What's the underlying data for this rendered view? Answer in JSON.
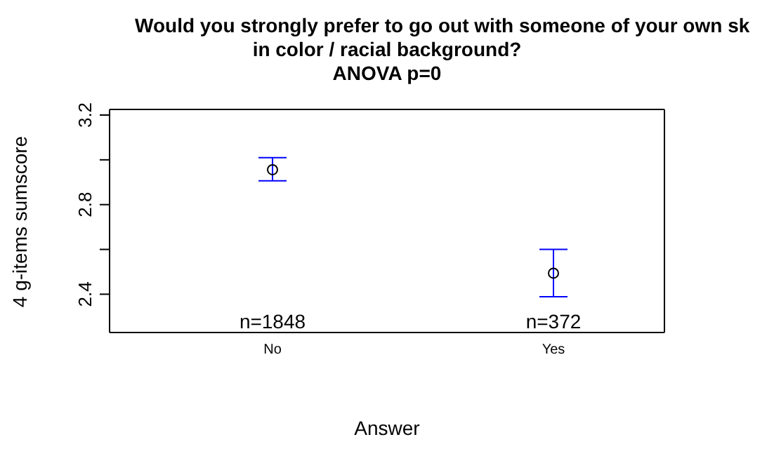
{
  "chart_data": {
    "type": "scatter",
    "title": "Would you strongly prefer to go out with someone of your own sk\nin color / racial background?\nANOVA p=0",
    "xlabel": "Answer",
    "ylabel": "4 g-items sumscore",
    "categories": [
      "No",
      "Yes"
    ],
    "series": [
      {
        "color": "#000000",
        "values": [
          2.956,
          2.494
        ],
        "errors": [
          [
            2.906,
            3.01
          ],
          [
            2.389,
            2.6
          ]
        ]
      }
    ],
    "marker": "circle",
    "ylim": [
      2.229,
      3.225
    ],
    "yticks": [
      2.4,
      {
        "value": 2.6,
        "label": null
      },
      2.8,
      {
        "value": 3.0,
        "label": null
      },
      3.2
    ],
    "annotations": [
      "n=1848",
      "n=372"
    ],
    "legend": false
  }
}
